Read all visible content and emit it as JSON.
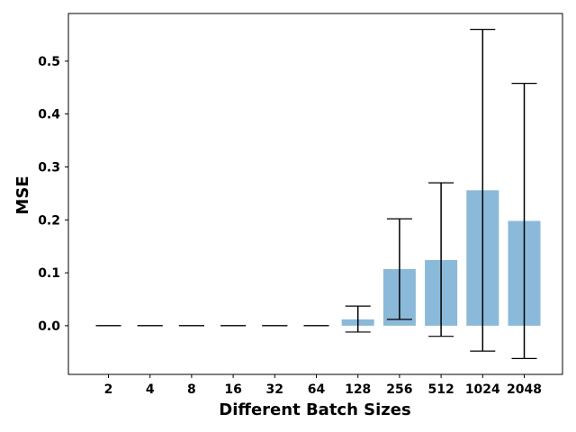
{
  "chart_data": {
    "type": "bar",
    "title": "",
    "xlabel": "Different Batch Sizes",
    "ylabel": "MSE",
    "categories": [
      "2",
      "4",
      "8",
      "16",
      "32",
      "64",
      "128",
      "256",
      "512",
      "1024",
      "2048"
    ],
    "values": [
      0.0,
      0.0,
      0.0,
      0.0,
      0.0,
      0.0,
      0.012,
      0.107,
      0.124,
      0.256,
      0.198
    ],
    "error_low": [
      0.0,
      0.0,
      0.0,
      0.0,
      0.0,
      0.0,
      -0.012,
      0.012,
      -0.02,
      -0.048,
      -0.062
    ],
    "error_high": [
      0.0,
      0.0,
      0.0,
      0.0,
      0.0,
      0.0,
      0.037,
      0.202,
      0.27,
      0.56,
      0.458
    ],
    "ylim": [
      -0.092,
      0.59
    ],
    "yticks": [
      0.0,
      0.1,
      0.2,
      0.3,
      0.4,
      0.5
    ],
    "ytick_labels": [
      "0.0",
      "0.1",
      "0.2",
      "0.3",
      "0.4",
      "0.5"
    ],
    "grid": false,
    "bar_color": "#8bb9d9",
    "errorbar_color": "#000000"
  }
}
